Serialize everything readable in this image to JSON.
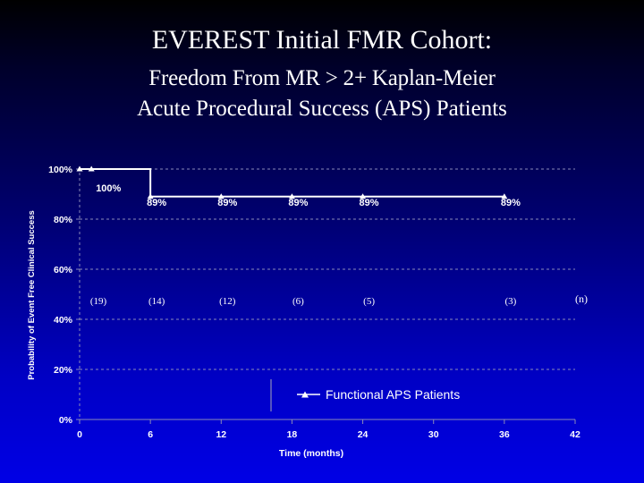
{
  "slide": {
    "title": "EVEREST Initial FMR Cohort:",
    "subtitle_1": "Freedom From MR > 2+ Kaplan-Meier",
    "subtitle_2": "Acute Procedural Success (APS) Patients"
  },
  "chart_data": {
    "type": "line",
    "step": true,
    "ylabel": "Probability of Event Free Clinical Success",
    "xlabel": "Time (months)",
    "xlim": [
      0,
      42
    ],
    "ylim": [
      0,
      100
    ],
    "x_ticks": [
      "0",
      "6",
      "12",
      "18",
      "24",
      "30",
      "36",
      "42"
    ],
    "y_ticks": [
      "0%",
      "20%",
      "40%",
      "60%",
      "80%",
      "100%"
    ],
    "grid": "horizontal dashed",
    "series": [
      {
        "name": "Functional APS Patients",
        "color": "#ffffff",
        "points": [
          {
            "x": 0,
            "y": 100
          },
          {
            "x": 1,
            "y": 100
          },
          {
            "x": 6,
            "y": 89
          },
          {
            "x": 12,
            "y": 89
          },
          {
            "x": 18,
            "y": 89
          },
          {
            "x": 24,
            "y": 89
          },
          {
            "x": 36,
            "y": 89
          }
        ],
        "step_drop_at": 6,
        "end_x": 36
      }
    ],
    "data_labels": [
      {
        "x": 1,
        "y": 100,
        "text": "100%"
      },
      {
        "x": 6,
        "y": 89,
        "text": "89%"
      },
      {
        "x": 12,
        "y": 89,
        "text": "89%"
      },
      {
        "x": 18,
        "y": 89,
        "text": "89%"
      },
      {
        "x": 24,
        "y": 89,
        "text": "89%"
      },
      {
        "x": 36,
        "y": 89,
        "text": "89%"
      }
    ],
    "at_risk": {
      "label": "(n)",
      "entries": [
        {
          "x": 0,
          "text": "(19)"
        },
        {
          "x": 6,
          "text": "(14)"
        },
        {
          "x": 12,
          "text": "(12)"
        },
        {
          "x": 18,
          "text": "(6)"
        },
        {
          "x": 24,
          "text": "(5)"
        },
        {
          "x": 36,
          "text": "(3)"
        }
      ]
    },
    "legend": {
      "position": "bottom-right",
      "label": "Functional APS Patients"
    }
  }
}
